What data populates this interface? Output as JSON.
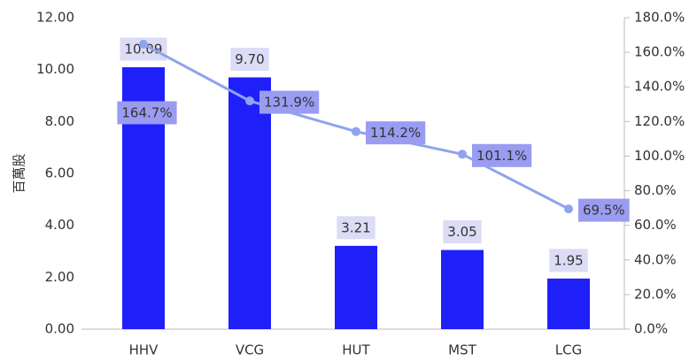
{
  "chart_data": {
    "type": "bar",
    "y_label": "百萬股",
    "categories": [
      "HHV",
      "VCG",
      "HUT",
      "MST",
      "LCG"
    ],
    "series": [
      {
        "type": "bar",
        "color": "#1f1ffa",
        "values": [
          10.09,
          9.7,
          3.21,
          3.05,
          1.95
        ],
        "value_labels": [
          "10.09",
          "9.70",
          "3.21",
          "3.05",
          "1.95"
        ]
      },
      {
        "type": "line",
        "axis": "y2",
        "color": "#8fa3ee",
        "values": [
          164.7,
          131.9,
          114.2,
          101.1,
          69.5
        ],
        "value_labels": [
          "164.7%",
          "131.9%",
          "114.2%",
          "101.1%",
          "69.5%"
        ]
      }
    ],
    "ylim": [
      0,
      12
    ],
    "yticks": [
      {
        "value": 0,
        "label": "0.00"
      },
      {
        "value": 2,
        "label": "2.00"
      },
      {
        "value": 4,
        "label": "4.00"
      },
      {
        "value": 6,
        "label": "6.00"
      },
      {
        "value": 8,
        "label": "8.00"
      },
      {
        "value": 10,
        "label": "10.00"
      },
      {
        "value": 12,
        "label": "12.00"
      }
    ],
    "y2lim": [
      0,
      180
    ],
    "y2ticks": [
      {
        "value": 0,
        "label": "0.0%"
      },
      {
        "value": 20,
        "label": "20.0%"
      },
      {
        "value": 40,
        "label": "40.0%"
      },
      {
        "value": 60,
        "label": "60.0%"
      },
      {
        "value": 80,
        "label": "80.0%"
      },
      {
        "value": 100,
        "label": "100.0%"
      },
      {
        "value": 120,
        "label": "120.0%"
      },
      {
        "value": 140,
        "label": "140.0%"
      },
      {
        "value": 160,
        "label": "160.0%"
      },
      {
        "value": 180,
        "label": "180.0%"
      }
    ]
  }
}
